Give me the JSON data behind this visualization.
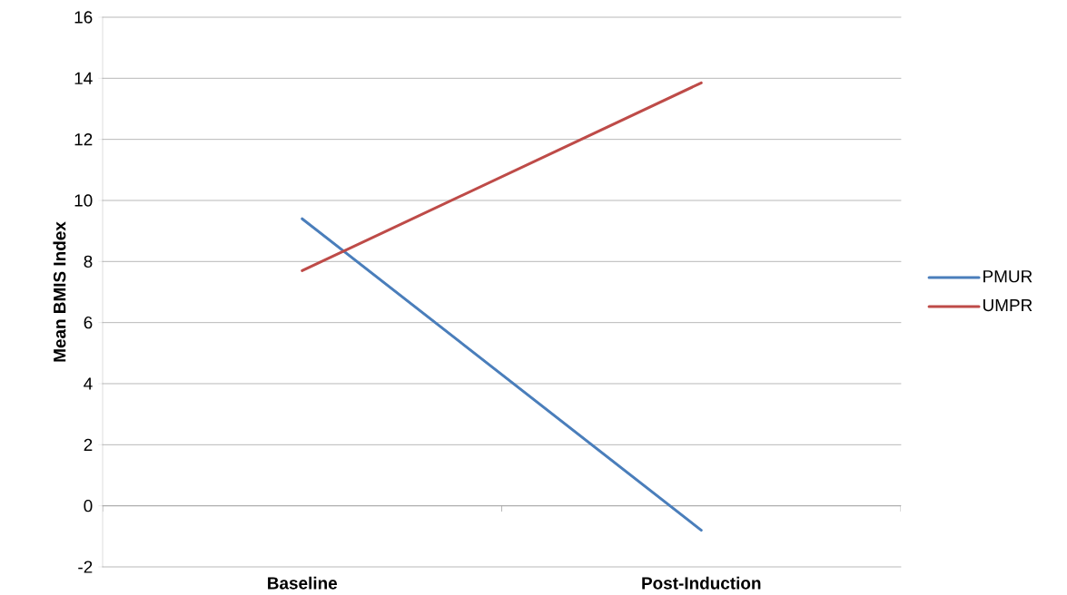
{
  "chart_data": {
    "type": "line",
    "ylabel": "Mean BMIS Index",
    "categories": [
      "Baseline",
      "Post-Induction"
    ],
    "series": [
      {
        "name": "PMUR",
        "color": "#4a7ebb",
        "values": [
          9.4,
          -0.8
        ]
      },
      {
        "name": "UMPR",
        "color": "#be4b48",
        "values": [
          7.7,
          13.85
        ]
      }
    ],
    "ylim": [
      -2,
      16
    ],
    "yticks": [
      -2,
      0,
      2,
      4,
      6,
      8,
      10,
      12,
      14,
      16
    ],
    "grid": "y",
    "legend": "right"
  }
}
